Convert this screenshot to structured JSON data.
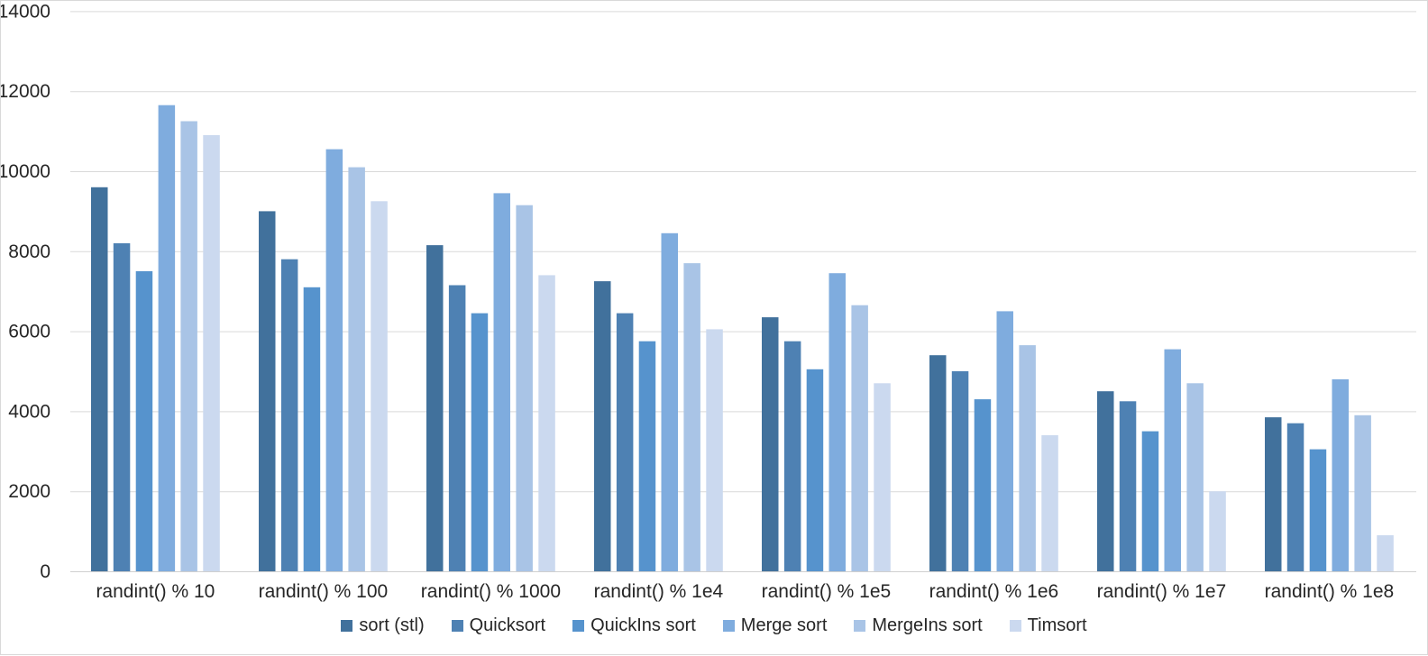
{
  "chart_data": {
    "type": "bar",
    "title": "",
    "xlabel": "",
    "ylabel": "",
    "categories": [
      "randint() % 10",
      "randint() % 100",
      "randint() % 1000",
      "randint() % 1e4",
      "randint() % 1e5",
      "randint() % 1e6",
      "randint() % 1e7",
      "randint() % 1e8"
    ],
    "series": [
      {
        "name": "sort (stl)",
        "color": "#41719C",
        "values": [
          9600,
          9000,
          8150,
          7250,
          6350,
          5400,
          4500,
          3850
        ]
      },
      {
        "name": "Quicksort",
        "color": "#4E81B3",
        "values": [
          8200,
          7800,
          7150,
          6450,
          5750,
          5000,
          4250,
          3700
        ]
      },
      {
        "name": "QuickIns sort",
        "color": "#5693CD",
        "values": [
          7500,
          7100,
          6450,
          5750,
          5050,
          4300,
          3500,
          3050
        ]
      },
      {
        "name": "Merge sort",
        "color": "#7FACDE",
        "values": [
          11650,
          10550,
          9450,
          8450,
          7450,
          6500,
          5550,
          4800
        ]
      },
      {
        "name": "MergeIns sort",
        "color": "#A9C4E6",
        "values": [
          11250,
          10100,
          9150,
          7700,
          6650,
          5650,
          4700,
          3900
        ]
      },
      {
        "name": "Timsort",
        "color": "#CBD9EF",
        "values": [
          10900,
          9250,
          7400,
          6050,
          4700,
          3400,
          2000,
          900
        ]
      }
    ],
    "ylim": [
      0,
      14000
    ],
    "ytick_step": 2000,
    "yticks": [
      0,
      2000,
      4000,
      6000,
      8000,
      10000,
      12000,
      14000
    ],
    "grid": "horizontal",
    "legend_position": "bottom"
  },
  "style": {
    "text_color": "#262626",
    "gridline_color": "#D9D9D9",
    "axis_line_color": "#CFCFCF",
    "background_color": "#FFFFFF",
    "border_color": "#D9D9D9"
  }
}
